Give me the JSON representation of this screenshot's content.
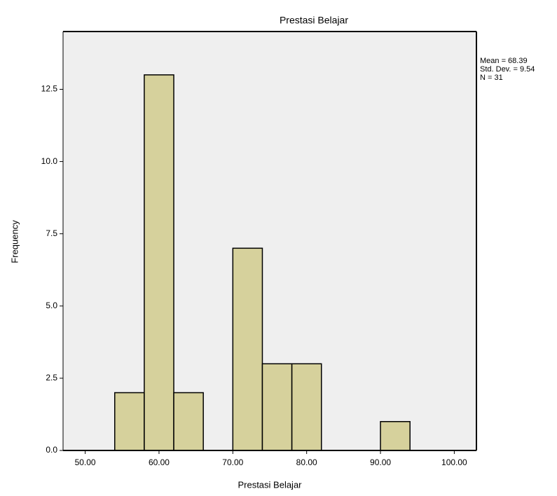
{
  "chart_data": {
    "type": "histogram",
    "title": "Prestasi Belajar",
    "x_label": "Prestasi Belajar",
    "y_label": "Frequency",
    "bins": [
      54,
      58,
      62,
      66,
      70,
      74,
      78,
      82,
      86,
      90,
      94
    ],
    "values": [
      2,
      13,
      2,
      0,
      7,
      3,
      3,
      0,
      0,
      1
    ],
    "color": "#d6d19c",
    "background": "#efefef",
    "xlim": [
      47,
      103
    ],
    "ylim": [
      0,
      14.5
    ],
    "xticks": [
      {
        "value": 50,
        "label": "50.00"
      },
      {
        "value": 60,
        "label": "60.00"
      },
      {
        "value": 70,
        "label": "70.00"
      },
      {
        "value": 80,
        "label": "80.00"
      },
      {
        "value": 90,
        "label": "90.00"
      },
      {
        "value": 100,
        "label": "100.00"
      }
    ],
    "yticks": [
      {
        "value": 0,
        "label": "0.0"
      },
      2.5,
      {
        "value": 5,
        "label": "5.0"
      },
      7.5,
      {
        "value": 10,
        "label": "10.0"
      },
      12.5
    ],
    "stats": [
      "Mean = 68.39",
      "Std. Dev. = 9.54",
      "N = 31"
    ]
  }
}
